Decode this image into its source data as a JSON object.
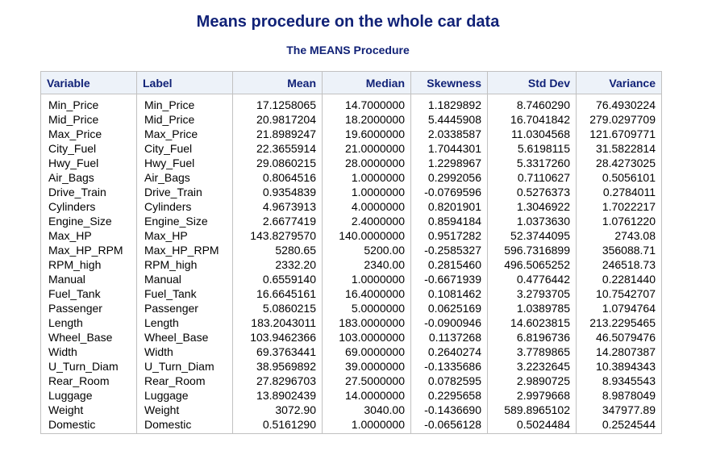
{
  "report": {
    "title": "Means procedure on the whole car data",
    "subtitle": "The MEANS Procedure"
  },
  "table": {
    "headers": [
      "Variable",
      "Label",
      "Mean",
      "Median",
      "Skewness",
      "Std Dev",
      "Variance"
    ],
    "rows": [
      [
        "Min_Price",
        "Min_Price",
        "17.1258065",
        "14.7000000",
        "1.1829892",
        "8.7460290",
        "76.4930224"
      ],
      [
        "Mid_Price",
        "Mid_Price",
        "20.9817204",
        "18.2000000",
        "5.4445908",
        "16.7041842",
        "279.0297709"
      ],
      [
        "Max_Price",
        "Max_Price",
        "21.8989247",
        "19.6000000",
        "2.0338587",
        "11.0304568",
        "121.6709771"
      ],
      [
        "City_Fuel",
        "City_Fuel",
        "22.3655914",
        "21.0000000",
        "1.7044301",
        "5.6198115",
        "31.5822814"
      ],
      [
        "Hwy_Fuel",
        "Hwy_Fuel",
        "29.0860215",
        "28.0000000",
        "1.2298967",
        "5.3317260",
        "28.4273025"
      ],
      [
        "Air_Bags",
        "Air_Bags",
        "0.8064516",
        "1.0000000",
        "0.2992056",
        "0.7110627",
        "0.5056101"
      ],
      [
        "Drive_Train",
        "Drive_Train",
        "0.9354839",
        "1.0000000",
        "-0.0769596",
        "0.5276373",
        "0.2784011"
      ],
      [
        "Cylinders",
        "Cylinders",
        "4.9673913",
        "4.0000000",
        "0.8201901",
        "1.3046922",
        "1.7022217"
      ],
      [
        "Engine_Size",
        "Engine_Size",
        "2.6677419",
        "2.4000000",
        "0.8594184",
        "1.0373630",
        "1.0761220"
      ],
      [
        "Max_HP",
        "Max_HP",
        "143.8279570",
        "140.0000000",
        "0.9517282",
        "52.3744095",
        "2743.08"
      ],
      [
        "Max_HP_RPM",
        "Max_HP_RPM",
        "5280.65",
        "5200.00",
        "-0.2585327",
        "596.7316899",
        "356088.71"
      ],
      [
        "RPM_high",
        "RPM_high",
        "2332.20",
        "2340.00",
        "0.2815460",
        "496.5065252",
        "246518.73"
      ],
      [
        "Manual",
        "Manual",
        "0.6559140",
        "1.0000000",
        "-0.6671939",
        "0.4776442",
        "0.2281440"
      ],
      [
        "Fuel_Tank",
        "Fuel_Tank",
        "16.6645161",
        "16.4000000",
        "0.1081462",
        "3.2793705",
        "10.7542707"
      ],
      [
        "Passenger",
        "Passenger",
        "5.0860215",
        "5.0000000",
        "0.0625169",
        "1.0389785",
        "1.0794764"
      ],
      [
        "Length",
        "Length",
        "183.2043011",
        "183.0000000",
        "-0.0900946",
        "14.6023815",
        "213.2295465"
      ],
      [
        "Wheel_Base",
        "Wheel_Base",
        "103.9462366",
        "103.0000000",
        "0.1137268",
        "6.8196736",
        "46.5079476"
      ],
      [
        "Width",
        "Width",
        "69.3763441",
        "69.0000000",
        "0.2640274",
        "3.7789865",
        "14.2807387"
      ],
      [
        "U_Turn_Diam",
        "U_Turn_Diam",
        "38.9569892",
        "39.0000000",
        "-0.1335686",
        "3.2232645",
        "10.3894343"
      ],
      [
        "Rear_Room",
        "Rear_Room",
        "27.8296703",
        "27.5000000",
        "0.0782595",
        "2.9890725",
        "8.9345543"
      ],
      [
        "Luggage",
        "Luggage",
        "13.8902439",
        "14.0000000",
        "0.2295658",
        "2.9979668",
        "8.9878049"
      ],
      [
        "Weight",
        "Weight",
        "3072.90",
        "3040.00",
        "-0.1436690",
        "589.8965102",
        "347977.89"
      ],
      [
        "Domestic",
        "Domestic",
        "0.5161290",
        "1.0000000",
        "-0.0656128",
        "0.5024484",
        "0.2524544"
      ]
    ]
  }
}
